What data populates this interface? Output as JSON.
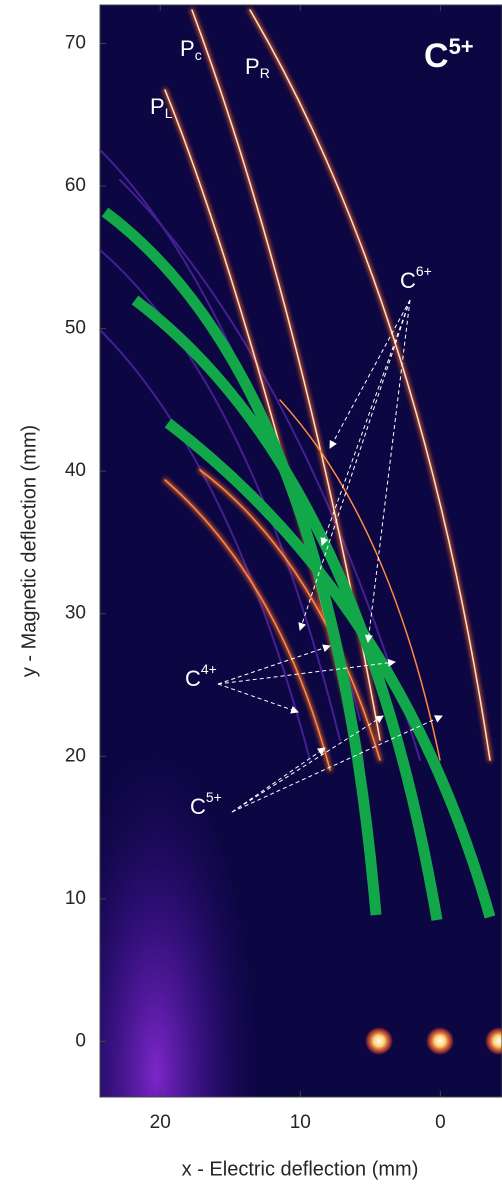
{
  "chart_data": {
    "type": "image",
    "xlabel": "x - Electric deflection (mm)",
    "ylabel": "y - Magnetic deflection (mm)",
    "xlim": [
      24.3,
      -4.4
    ],
    "ylim": [
      -3.9,
      72.7
    ],
    "xticks": [
      20,
      10,
      0
    ],
    "yticks": [
      0,
      10,
      20,
      30,
      40,
      50,
      60,
      70
    ],
    "title": {
      "text": "C",
      "sup": "5+"
    },
    "annotations": [
      {
        "text": "P",
        "sub": "L"
      },
      {
        "text": "P",
        "sub": "c"
      },
      {
        "text": "P",
        "sub": "R"
      },
      {
        "text": "C",
        "sup": "6+"
      },
      {
        "text": "C",
        "sup": "4+"
      },
      {
        "text": "C",
        "sup": "5+"
      }
    ]
  }
}
